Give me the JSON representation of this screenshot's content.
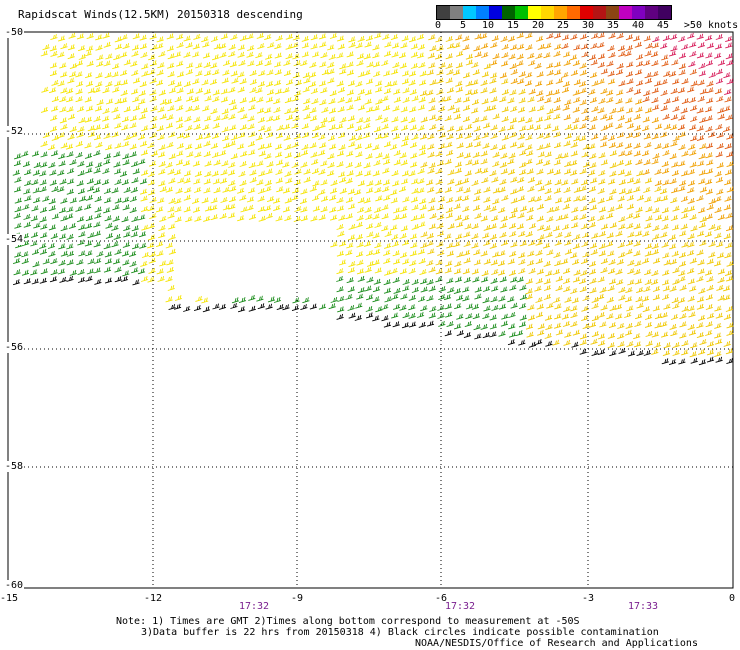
{
  "title": "Rapidscat Winds(12.5KM) 20150318 descending",
  "legend": {
    "labels": [
      "0",
      "5",
      "10",
      "15",
      "20",
      "25",
      "30",
      "35",
      "40",
      "45",
      ">50 knots"
    ],
    "colors": [
      "#404040",
      "#808080",
      "#00c8ff",
      "#0080ff",
      "#0000e0",
      "#006400",
      "#00c000",
      "#ffff00",
      "#ffd700",
      "#ffa500",
      "#ff6a00",
      "#e00000",
      "#b41414",
      "#8b4513",
      "#c000c0",
      "#8000c0",
      "#600080",
      "#400060"
    ]
  },
  "axes": {
    "x_ticks": [
      "-15",
      "-12",
      "-9",
      "-6",
      "-3",
      "0"
    ],
    "y_ticks": [
      "-50",
      "-52",
      "-54",
      "-56",
      "-58",
      "-60"
    ],
    "times": [
      "17:32",
      "17:32",
      "17:33"
    ]
  },
  "notes": {
    "line1": "Note: 1) Times are GMT 2)Times along bottom correspond to measurement at -50S",
    "line2": "3)Data buffer is 22 hrs from 20150318 4) Black circles indicate possible contamination",
    "line3": "NOAA/NESDIS/Office of Research and Applications"
  }
}
